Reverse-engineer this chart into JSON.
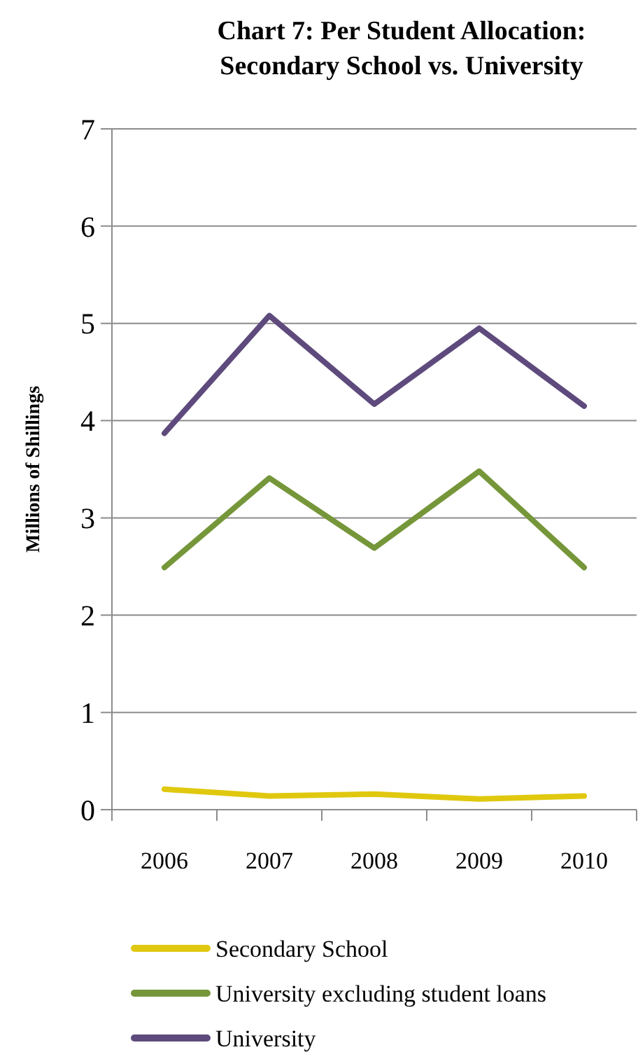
{
  "chart_data": {
    "type": "line",
    "title": "Chart 7: Per Student Allocation: Secondary School vs. University",
    "ylabel": "Millions of Shillings",
    "categories": [
      "2006",
      "2007",
      "2008",
      "2009",
      "2010"
    ],
    "series": [
      {
        "name": "Secondary School",
        "color": "#e0c80f",
        "values": [
          0.21,
          0.14,
          0.16,
          0.11,
          0.14
        ]
      },
      {
        "name": "University excluding student loans",
        "color": "#76963a",
        "values": [
          2.49,
          3.41,
          2.69,
          3.48,
          2.49
        ]
      },
      {
        "name": "University",
        "color": "#5e4a7c",
        "values": [
          3.87,
          5.08,
          4.17,
          4.95,
          4.15
        ]
      }
    ],
    "ylim": [
      0,
      7
    ],
    "yticks": [
      0,
      1,
      2,
      3,
      4,
      5,
      6,
      7
    ],
    "grid": "y",
    "legend": "bottom",
    "marker": "none",
    "line_style": "solid"
  }
}
